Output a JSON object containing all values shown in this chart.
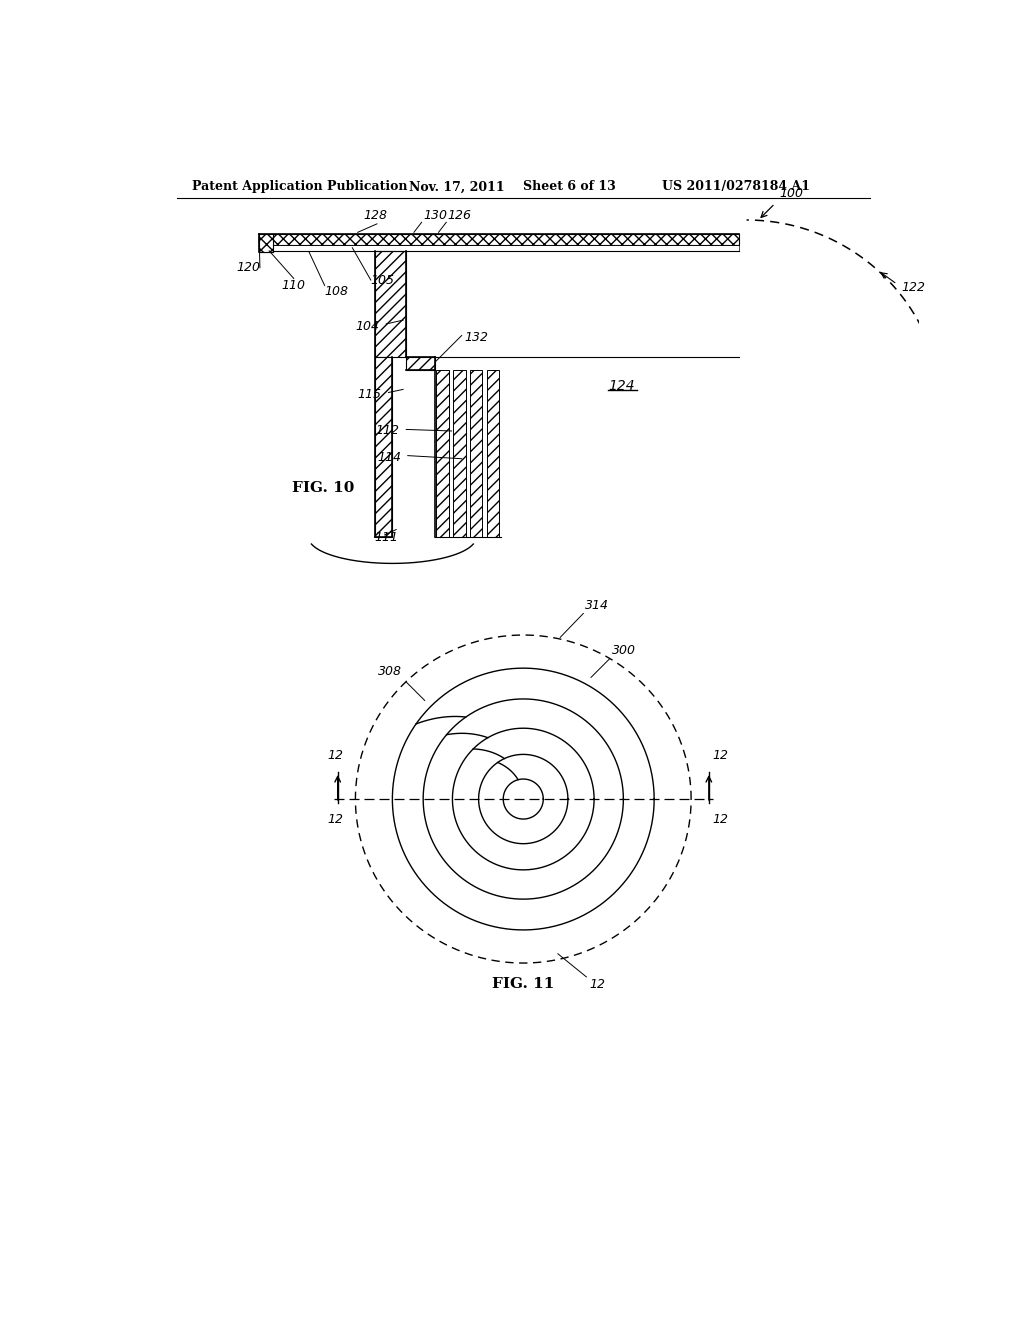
{
  "bg_color": "#ffffff",
  "header_text": "Patent Application Publication",
  "header_date": "Nov. 17, 2011",
  "header_sheet": "Sheet 6 of 13",
  "header_patent": "US 2011/0278184 A1",
  "fig10_label": "FIG. 10",
  "fig11_label": "FIG. 11",
  "line_color": "#000000"
}
